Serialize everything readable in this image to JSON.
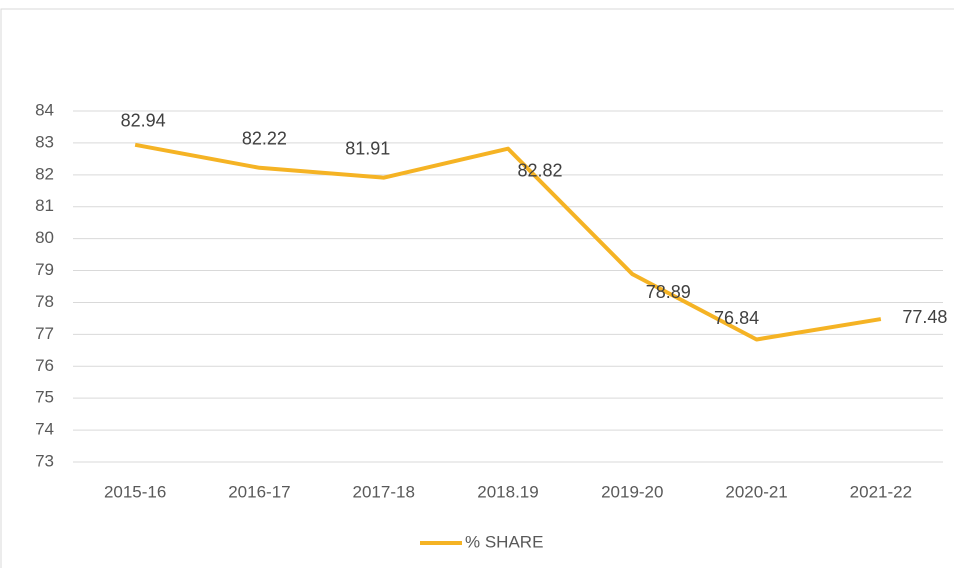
{
  "chart_data": {
    "type": "line",
    "categories": [
      "2015-16",
      "2016-17",
      "2017-18",
      "2018.19",
      "2019-20",
      "2020-21",
      "2021-22"
    ],
    "series": [
      {
        "name": "% SHARE",
        "color": "#f5b324",
        "values": [
          82.94,
          82.22,
          81.91,
          82.82,
          78.89,
          76.84,
          77.48
        ]
      }
    ],
    "ylim": [
      73,
      84
    ],
    "yticks": [
      73,
      74,
      75,
      76,
      77,
      78,
      79,
      80,
      81,
      82,
      83,
      84
    ],
    "grid": true,
    "legend": "bottom"
  }
}
